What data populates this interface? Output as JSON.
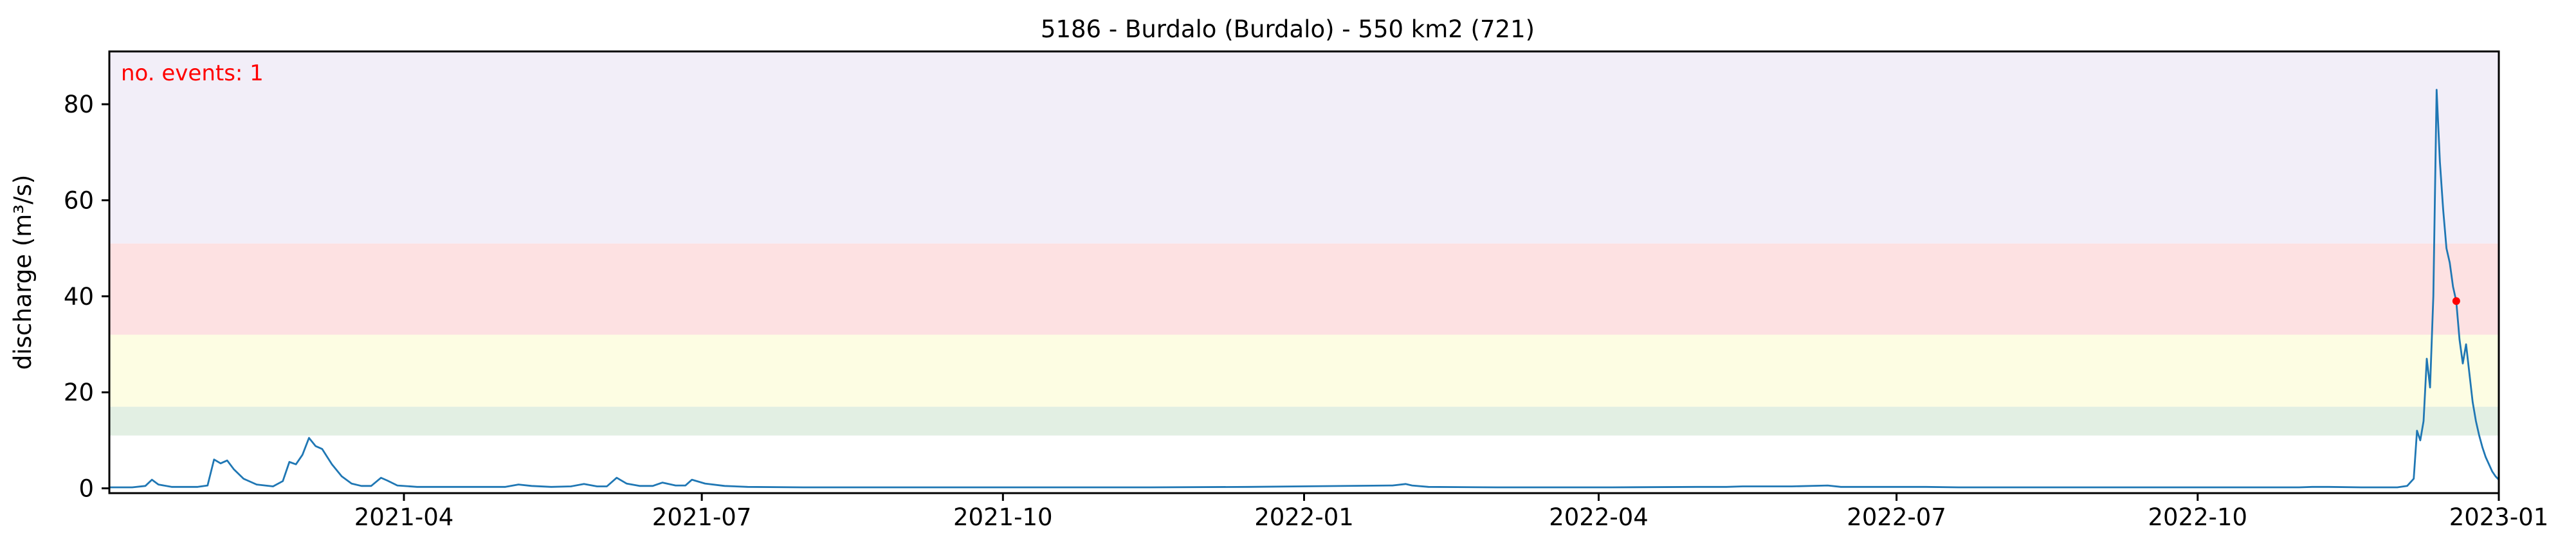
{
  "chart_data": {
    "type": "line",
    "title": "5186 - Burdalo (Burdalo) - 550 km2 (721)",
    "xlabel": "",
    "ylabel": "discharge (m³/s)",
    "annotation": "no. events: 1",
    "annotation_color": "#ff0000",
    "line_color": "#1f77b4",
    "event_marker_color": "#ff0000",
    "grid": false,
    "legend": "none",
    "xlim": [
      "2021-01-01",
      "2023-01-01"
    ],
    "ylim": [
      -1,
      91
    ],
    "x_ticks": [
      {
        "date": "2021-04-01",
        "label": "2021-04"
      },
      {
        "date": "2021-07-01",
        "label": "2021-07"
      },
      {
        "date": "2021-10-01",
        "label": "2021-10"
      },
      {
        "date": "2022-01-01",
        "label": "2022-01"
      },
      {
        "date": "2022-04-01",
        "label": "2022-04"
      },
      {
        "date": "2022-07-01",
        "label": "2022-07"
      },
      {
        "date": "2022-10-01",
        "label": "2022-10"
      },
      {
        "date": "2023-01-01",
        "label": "2023-01"
      }
    ],
    "y_ticks": [
      0,
      20,
      40,
      60,
      80
    ],
    "bands": [
      {
        "from": 11,
        "to": 17,
        "color": "#e2efe3"
      },
      {
        "from": 17,
        "to": 32,
        "color": "#fdfde3"
      },
      {
        "from": 32,
        "to": 51,
        "color": "#fde1e2"
      },
      {
        "from": 51,
        "to": 91,
        "color": "#f2eef8"
      }
    ],
    "events": [
      {
        "date": "2022-12-19",
        "value": 39
      }
    ],
    "series": [
      {
        "points": [
          [
            "2021-01-01",
            0.2
          ],
          [
            "2021-01-08",
            0.2
          ],
          [
            "2021-01-12",
            0.5
          ],
          [
            "2021-01-14",
            1.8
          ],
          [
            "2021-01-16",
            0.8
          ],
          [
            "2021-01-20",
            0.3
          ],
          [
            "2021-01-28",
            0.3
          ],
          [
            "2021-01-31",
            0.6
          ],
          [
            "2021-02-02",
            6.0
          ],
          [
            "2021-02-04",
            5.2
          ],
          [
            "2021-02-06",
            5.8
          ],
          [
            "2021-02-08",
            4.0
          ],
          [
            "2021-02-11",
            2.0
          ],
          [
            "2021-02-15",
            0.8
          ],
          [
            "2021-02-20",
            0.4
          ],
          [
            "2021-02-23",
            1.5
          ],
          [
            "2021-02-25",
            5.5
          ],
          [
            "2021-02-27",
            5.0
          ],
          [
            "2021-03-01",
            7.0
          ],
          [
            "2021-03-03",
            10.5
          ],
          [
            "2021-03-05",
            8.8
          ],
          [
            "2021-03-07",
            8.2
          ],
          [
            "2021-03-10",
            5.0
          ],
          [
            "2021-03-13",
            2.5
          ],
          [
            "2021-03-16",
            1.0
          ],
          [
            "2021-03-19",
            0.5
          ],
          [
            "2021-03-22",
            0.5
          ],
          [
            "2021-03-25",
            2.2
          ],
          [
            "2021-03-27",
            1.6
          ],
          [
            "2021-03-30",
            0.6
          ],
          [
            "2021-04-05",
            0.3
          ],
          [
            "2021-04-20",
            0.3
          ],
          [
            "2021-05-02",
            0.3
          ],
          [
            "2021-05-06",
            0.8
          ],
          [
            "2021-05-10",
            0.5
          ],
          [
            "2021-05-16",
            0.3
          ],
          [
            "2021-05-22",
            0.4
          ],
          [
            "2021-05-26",
            0.9
          ],
          [
            "2021-05-30",
            0.4
          ],
          [
            "2021-06-02",
            0.4
          ],
          [
            "2021-06-05",
            2.2
          ],
          [
            "2021-06-08",
            1.0
          ],
          [
            "2021-06-12",
            0.5
          ],
          [
            "2021-06-16",
            0.5
          ],
          [
            "2021-06-19",
            1.2
          ],
          [
            "2021-06-23",
            0.6
          ],
          [
            "2021-06-26",
            0.6
          ],
          [
            "2021-06-28",
            1.8
          ],
          [
            "2021-07-02",
            1.0
          ],
          [
            "2021-07-08",
            0.5
          ],
          [
            "2021-07-15",
            0.3
          ],
          [
            "2021-08-01",
            0.2
          ],
          [
            "2021-09-01",
            0.2
          ],
          [
            "2021-09-20",
            0.2
          ],
          [
            "2021-10-01",
            0.2
          ],
          [
            "2021-11-15",
            0.2
          ],
          [
            "2021-12-15",
            0.3
          ],
          [
            "2022-01-28",
            0.6
          ],
          [
            "2022-02-01",
            0.9
          ],
          [
            "2022-02-03",
            0.6
          ],
          [
            "2022-02-08",
            0.3
          ],
          [
            "2022-03-01",
            0.2
          ],
          [
            "2022-04-05",
            0.2
          ],
          [
            "2022-05-01",
            0.3
          ],
          [
            "2022-05-10",
            0.3
          ],
          [
            "2022-05-15",
            0.4
          ],
          [
            "2022-05-20",
            0.4
          ],
          [
            "2022-05-30",
            0.4
          ],
          [
            "2022-06-10",
            0.6
          ],
          [
            "2022-06-14",
            0.3
          ],
          [
            "2022-07-01",
            0.3
          ],
          [
            "2022-07-10",
            0.3
          ],
          [
            "2022-07-20",
            0.2
          ],
          [
            "2022-08-20",
            0.2
          ],
          [
            "2022-09-20",
            0.2
          ],
          [
            "2022-10-01",
            0.2
          ],
          [
            "2022-10-05",
            0.2
          ],
          [
            "2022-10-20",
            0.2
          ],
          [
            "2022-11-01",
            0.2
          ],
          [
            "2022-11-05",
            0.3
          ],
          [
            "2022-11-10",
            0.3
          ],
          [
            "2022-11-20",
            0.2
          ],
          [
            "2022-11-25",
            0.2
          ],
          [
            "2022-12-01",
            0.2
          ],
          [
            "2022-12-04",
            0.5
          ],
          [
            "2022-12-06",
            2.0
          ],
          [
            "2022-12-07",
            12.0
          ],
          [
            "2022-12-08",
            10.0
          ],
          [
            "2022-12-09",
            14.0
          ],
          [
            "2022-12-10",
            27.0
          ],
          [
            "2022-12-11",
            21.0
          ],
          [
            "2022-12-12",
            40.0
          ],
          [
            "2022-12-13",
            83.0
          ],
          [
            "2022-12-14",
            68.0
          ],
          [
            "2022-12-15",
            58.0
          ],
          [
            "2022-12-16",
            50.0
          ],
          [
            "2022-12-17",
            47.0
          ],
          [
            "2022-12-18",
            42.0
          ],
          [
            "2022-12-19",
            39.0
          ],
          [
            "2022-12-20",
            31.0
          ],
          [
            "2022-12-21",
            26.0
          ],
          [
            "2022-12-22",
            30.0
          ],
          [
            "2022-12-23",
            24.0
          ],
          [
            "2022-12-24",
            18.0
          ],
          [
            "2022-12-25",
            14.0
          ],
          [
            "2022-12-26",
            11.0
          ],
          [
            "2022-12-27",
            8.5
          ],
          [
            "2022-12-28",
            6.5
          ],
          [
            "2022-12-29",
            5.0
          ],
          [
            "2022-12-30",
            3.5
          ],
          [
            "2022-12-31",
            2.5
          ],
          [
            "2023-01-01",
            1.8
          ]
        ]
      }
    ]
  }
}
